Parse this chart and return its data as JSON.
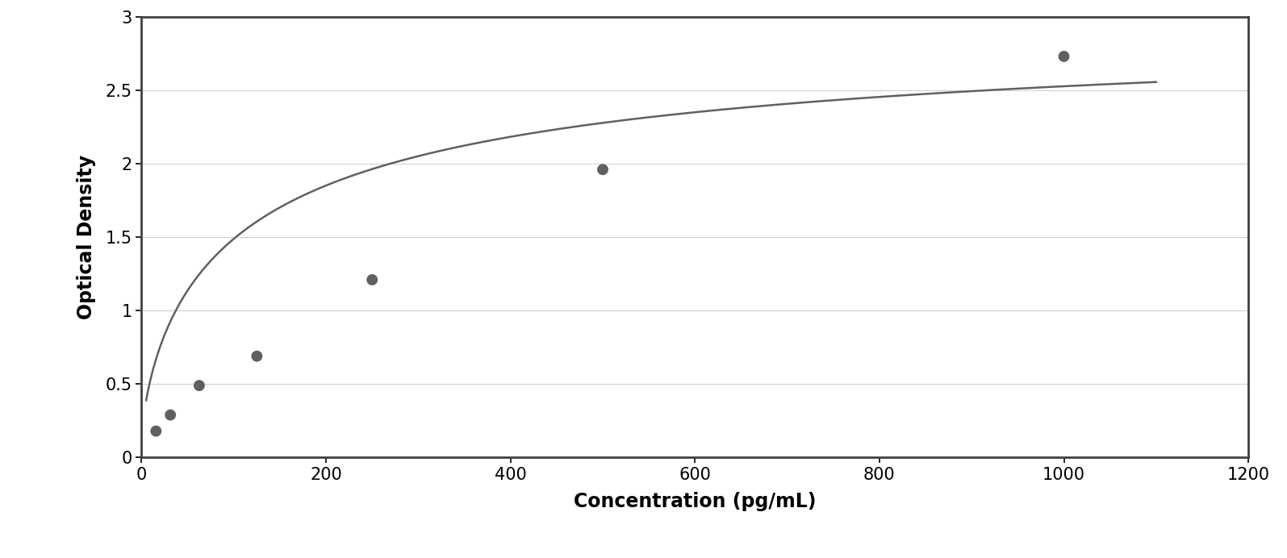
{
  "x_data": [
    15.625,
    31.25,
    62.5,
    125,
    250,
    500,
    1000
  ],
  "y_data": [
    0.18,
    0.29,
    0.49,
    0.69,
    1.21,
    1.96,
    2.73
  ],
  "xlabel": "Concentration (pg/mL)",
  "ylabel": "Optical Density",
  "xlim": [
    0,
    1200
  ],
  "ylim": [
    0,
    3
  ],
  "xticks": [
    0,
    200,
    400,
    600,
    800,
    1000,
    1200
  ],
  "yticks": [
    0,
    0.5,
    1,
    1.5,
    2,
    2.5,
    3
  ],
  "marker_color": "#606060",
  "line_color": "#606060",
  "grid_color": "#d0d0d0",
  "background_color": "#ffffff",
  "border_color": "#404040",
  "outer_bg": "#ffffff",
  "marker_size": 10,
  "line_width": 1.8,
  "xlabel_fontsize": 17,
  "ylabel_fontsize": 17,
  "tick_fontsize": 15,
  "curve_x_start": 5,
  "curve_x_end": 1100,
  "four_pl_A": 0.12,
  "four_pl_B": 0.72,
  "four_pl_C": 120,
  "four_pl_D": 3.05
}
